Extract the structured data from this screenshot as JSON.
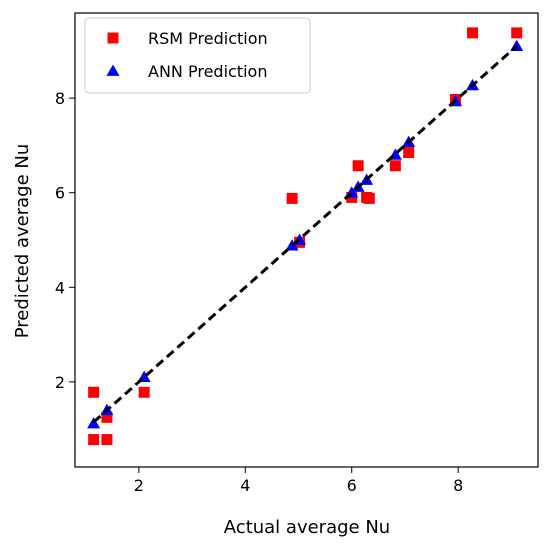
{
  "chart_data": {
    "type": "scatter",
    "xlabel": "Actual average Nu",
    "ylabel": "Predicted average Nu",
    "xlim": [
      0.8,
      9.5
    ],
    "ylim": [
      0.2,
      9.8
    ],
    "x_ticks": [
      2,
      4,
      6,
      8
    ],
    "y_ticks": [
      2,
      4,
      6,
      8
    ],
    "grid": false,
    "legend_position": "top-left",
    "series": [
      {
        "name": "RSM Prediction",
        "marker": "square",
        "color": "#ff0000",
        "points": [
          [
            1.15,
            1.78
          ],
          [
            1.15,
            0.78
          ],
          [
            1.4,
            0.78
          ],
          [
            1.4,
            1.25
          ],
          [
            2.1,
            1.78
          ],
          [
            4.88,
            5.88
          ],
          [
            5.02,
            4.95
          ],
          [
            6.0,
            5.9
          ],
          [
            6.12,
            6.57
          ],
          [
            6.28,
            5.9
          ],
          [
            6.33,
            5.88
          ],
          [
            6.82,
            6.57
          ],
          [
            7.07,
            6.85
          ],
          [
            7.95,
            7.97
          ],
          [
            8.27,
            9.38
          ],
          [
            9.1,
            9.38
          ]
        ]
      },
      {
        "name": "ANN Prediction",
        "marker": "triangle",
        "color": "#0000ff",
        "points": [
          [
            1.15,
            1.12
          ],
          [
            1.4,
            1.4
          ],
          [
            2.1,
            2.1
          ],
          [
            4.88,
            4.88
          ],
          [
            5.02,
            5.0
          ],
          [
            6.0,
            6.0
          ],
          [
            6.12,
            6.12
          ],
          [
            6.28,
            6.27
          ],
          [
            6.82,
            6.8
          ],
          [
            7.07,
            7.07
          ],
          [
            7.95,
            7.93
          ],
          [
            8.27,
            8.27
          ],
          [
            9.1,
            9.1
          ]
        ]
      }
    ],
    "reference_line": {
      "style": "dashed",
      "color": "#000000",
      "from": [
        1.15,
        1.15
      ],
      "to": [
        9.1,
        9.1
      ]
    }
  }
}
